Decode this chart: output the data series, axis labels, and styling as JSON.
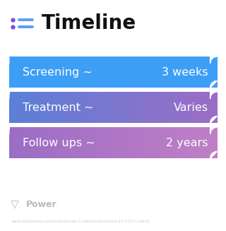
{
  "title": "Timeline",
  "background_color": "#ffffff",
  "title_fontsize": 20,
  "title_color": "#111111",
  "icon_color_dot": "#7c4ddf",
  "icon_color_line": "#5b9bf8",
  "rows": [
    {
      "label": "Screening ~",
      "value": "3 weeks",
      "color_left": "#3d9ef5",
      "color_right": "#3d9ef5"
    },
    {
      "label": "Treatment ~",
      "value": "Varies",
      "color_left": "#5b7fd8",
      "color_right": "#9b6dc5"
    },
    {
      "label": "Follow ups ~",
      "value": "2 years",
      "color_left": "#9b6dc5",
      "color_right": "#c07fc5"
    }
  ],
  "text_fontsize": 11.5,
  "text_color": "#ffffff",
  "footer_color": "#bbbbbb",
  "url_text": "www.withpower.com/trial/phase-3-adenocarcinoma-11-2013-ceb31",
  "url_color": "#cccccc"
}
